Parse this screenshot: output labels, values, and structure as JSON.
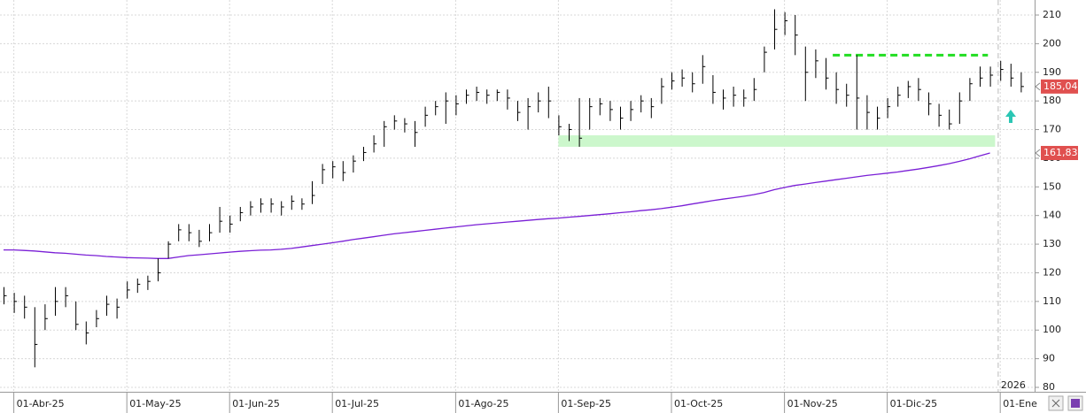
{
  "chart_data": {
    "type": "ohlc",
    "categories": [
      null,
      "01-Abr-25",
      null,
      null,
      null,
      null,
      null,
      null,
      null,
      null,
      null,
      null,
      "01-May-25",
      null,
      null,
      null,
      null,
      null,
      null,
      null,
      null,
      null,
      "01-Jun-25",
      null,
      null,
      null,
      null,
      null,
      null,
      null,
      null,
      null,
      "01-Jul-25",
      null,
      null,
      null,
      null,
      null,
      null,
      null,
      null,
      null,
      null,
      null,
      "01-Ago-25",
      null,
      null,
      null,
      null,
      null,
      null,
      null,
      null,
      null,
      "01-Sep-25",
      null,
      null,
      null,
      null,
      null,
      null,
      null,
      null,
      null,
      null,
      "01-Oct-25",
      null,
      null,
      null,
      null,
      null,
      null,
      null,
      null,
      null,
      null,
      "01-Nov-25",
      null,
      null,
      null,
      null,
      null,
      null,
      null,
      null,
      null,
      "01-Dic-25",
      null,
      null,
      null,
      null,
      null,
      null,
      null,
      null,
      null,
      null,
      "01-Ene",
      null,
      null
    ],
    "price": {
      "color": "#000000",
      "high": [
        115,
        113,
        112,
        108,
        109,
        115,
        115,
        110,
        103,
        107,
        112,
        111,
        117,
        118,
        119,
        125,
        131,
        137,
        137,
        135,
        137,
        143,
        140,
        143,
        145,
        146,
        146,
        145,
        147,
        146,
        152,
        158,
        159,
        159,
        161,
        164,
        168,
        173,
        175,
        174,
        173,
        178,
        180,
        183,
        182,
        184,
        185,
        184,
        184,
        184,
        180,
        181,
        183,
        185,
        175,
        172,
        181,
        181,
        181,
        180,
        178,
        180,
        182,
        181,
        188,
        190,
        191,
        190,
        196,
        189,
        184,
        185,
        184,
        188,
        199,
        212,
        211,
        210,
        199,
        198,
        195,
        190,
        186,
        196,
        182,
        178,
        181,
        185,
        187,
        188,
        183,
        179,
        177,
        183,
        188,
        192,
        192,
        194,
        193,
        190
      ],
      "low": [
        109,
        106,
        104,
        87,
        100,
        105,
        108,
        100,
        95,
        101,
        105,
        104,
        111,
        113,
        114,
        117,
        125,
        131,
        131,
        129,
        131,
        134,
        134,
        138,
        140,
        141,
        141,
        140,
        142,
        142,
        144,
        151,
        153,
        152,
        155,
        159,
        162,
        164,
        170,
        169,
        164,
        171,
        175,
        172,
        175,
        179,
        180,
        179,
        180,
        177,
        173,
        170,
        176,
        174,
        168,
        166,
        164,
        170,
        175,
        173,
        170,
        173,
        176,
        174,
        179,
        184,
        185,
        183,
        186,
        179,
        177,
        178,
        178,
        180,
        190,
        198,
        203,
        196,
        180,
        188,
        184,
        179,
        178,
        170,
        170,
        170,
        174,
        178,
        181,
        180,
        175,
        171,
        170,
        172,
        180,
        185,
        185,
        187,
        185,
        183
      ],
      "close": [
        112,
        110,
        108,
        95,
        104,
        110,
        112,
        102,
        99,
        104,
        109,
        108,
        114,
        116,
        117,
        120,
        130,
        135,
        134,
        131,
        134,
        138,
        137,
        141,
        143,
        144,
        144,
        143,
        145,
        144,
        147,
        156,
        157,
        155,
        159,
        162,
        165,
        171,
        173,
        172,
        169,
        175,
        178,
        180,
        179,
        182,
        183,
        182,
        183,
        181,
        176,
        178,
        180,
        180,
        171,
        170,
        167,
        178,
        179,
        177,
        174,
        177,
        180,
        178,
        185,
        187,
        188,
        186,
        192,
        183,
        181,
        182,
        181,
        184,
        197,
        205,
        208,
        203,
        190,
        194,
        188,
        184,
        182,
        181,
        176,
        174,
        178,
        182,
        185,
        184,
        179,
        175,
        172,
        180,
        186,
        188,
        189,
        191,
        188,
        185.04
      ],
      "last_label": "185,04"
    },
    "ma": {
      "color": "#7a1fd6",
      "values": [
        128,
        128,
        127.8,
        127.6,
        127.3,
        127,
        126.8,
        126.5,
        126.2,
        126,
        125.7,
        125.5,
        125.3,
        125.2,
        125.1,
        125,
        125,
        125.5,
        126,
        126.3,
        126.6,
        126.9,
        127.2,
        127.5,
        127.7,
        127.9,
        128,
        128.2,
        128.5,
        129,
        129.5,
        130,
        130.5,
        131,
        131.6,
        132.1,
        132.6,
        133.1,
        133.6,
        134,
        134.4,
        134.8,
        135.2,
        135.6,
        136,
        136.4,
        136.8,
        137.1,
        137.4,
        137.7,
        138,
        138.3,
        138.6,
        138.9,
        139.1,
        139.4,
        139.7,
        140,
        140.3,
        140.6,
        141,
        141.3,
        141.7,
        142,
        142.4,
        142.9,
        143.4,
        144,
        144.6,
        145.2,
        145.7,
        146.2,
        146.7,
        147.3,
        148,
        149,
        149.8,
        150.5,
        151,
        151.5,
        152,
        152.5,
        153,
        153.5,
        154,
        154.4,
        154.8,
        155.2,
        155.7,
        156.2,
        156.8,
        157.4,
        158.1,
        158.9,
        159.8,
        160.8,
        161.83,
        null,
        null,
        null
      ],
      "last_label": "161,83"
    },
    "resistance": {
      "value": 196,
      "color": "#22dd22"
    },
    "support_band": {
      "low": 164,
      "high": 168,
      "color": "#ccf7cc"
    },
    "year_marker": "2026",
    "label_color": "#e0504f",
    "ylim": [
      80,
      210
    ],
    "yticks": [
      80,
      90,
      100,
      110,
      120,
      130,
      140,
      150,
      160,
      170,
      180,
      190,
      200,
      210
    ],
    "grid": true
  }
}
